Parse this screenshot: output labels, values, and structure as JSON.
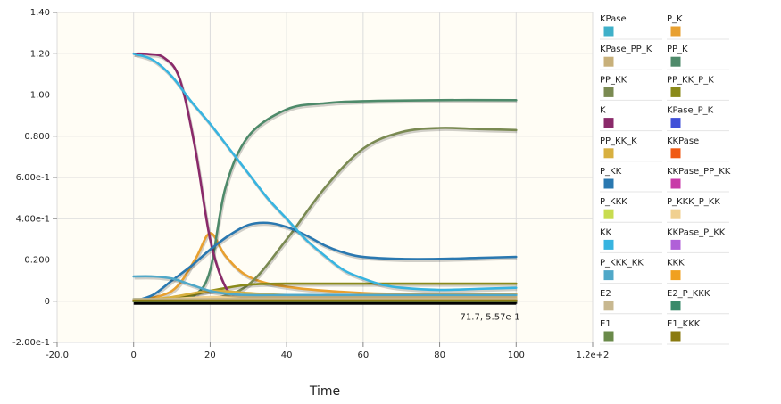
{
  "chart_data": {
    "type": "line",
    "xlabel": "Time",
    "ylabel": "",
    "xlim": [
      -20,
      120
    ],
    "ylim": [
      -0.2,
      1.4
    ],
    "x_ticks": [
      -20,
      0,
      20,
      40,
      60,
      80,
      100,
      120
    ],
    "x_tick_labels": [
      "-20.0",
      "0",
      "20",
      "40",
      "60",
      "80",
      "100",
      "1.2e+2"
    ],
    "y_ticks": [
      -0.2,
      0,
      0.2,
      0.4,
      0.6,
      0.8,
      1.0,
      1.2,
      1.4
    ],
    "y_tick_labels": [
      "-2.00e-1",
      "0",
      "0.200",
      "4.00e-1",
      "6.00e-1",
      "0.800",
      "1.00",
      "1.20",
      "1.40"
    ],
    "grid": true,
    "legend_placement": "right",
    "readout": "71.7, 5.57e-1",
    "series": [
      {
        "name": "KPase",
        "color": "#3fb0c9",
        "x": [
          0,
          20,
          40,
          60,
          80,
          100
        ],
        "values": [
          0.01,
          0.01,
          0.01,
          0.01,
          0.01,
          0.01
        ]
      },
      {
        "name": "P_K",
        "color": "#e8a030",
        "x": [
          0,
          10,
          16,
          20,
          24,
          30,
          40,
          60,
          80,
          100
        ],
        "values": [
          0,
          0.05,
          0.2,
          0.33,
          0.22,
          0.12,
          0.07,
          0.04,
          0.035,
          0.035
        ]
      },
      {
        "name": "KPase_PP_K",
        "color": "#c8b07a",
        "x": [
          0,
          20,
          40,
          60,
          80,
          100
        ],
        "values": [
          0,
          0.01,
          0.02,
          0.02,
          0.02,
          0.02
        ]
      },
      {
        "name": "PP_K",
        "color": "#4e8a6a",
        "x": [
          0,
          10,
          16,
          20,
          24,
          30,
          40,
          50,
          60,
          80,
          100
        ],
        "values": [
          0,
          0.002,
          0.03,
          0.15,
          0.55,
          0.8,
          0.93,
          0.96,
          0.97,
          0.975,
          0.975
        ]
      },
      {
        "name": "PP_KK",
        "color": "#7a8a52",
        "x": [
          0,
          10,
          20,
          30,
          40,
          50,
          60,
          70,
          80,
          90,
          100
        ],
        "values": [
          0,
          0.002,
          0.01,
          0.08,
          0.3,
          0.55,
          0.74,
          0.82,
          0.84,
          0.835,
          0.83
        ]
      },
      {
        "name": "PP_KK_P_K",
        "color": "#8a8a1a",
        "x": [
          0,
          10,
          20,
          30,
          40,
          60,
          80,
          100
        ],
        "values": [
          0,
          0.01,
          0.05,
          0.08,
          0.085,
          0.085,
          0.085,
          0.085
        ]
      },
      {
        "name": "K",
        "color": "#8a2a6a",
        "x": [
          0,
          4,
          8,
          12,
          16,
          20,
          24,
          28,
          32,
          40,
          60,
          100
        ],
        "values": [
          1.2,
          1.198,
          1.18,
          1.08,
          0.75,
          0.3,
          0.07,
          0.02,
          0.005,
          0.002,
          0.001,
          0.001
        ]
      },
      {
        "name": "KPase_P_K",
        "color": "#4050d8",
        "x": [
          0,
          20,
          40,
          60,
          80,
          100
        ],
        "values": [
          0,
          0.003,
          0.004,
          0.004,
          0.004,
          0.004
        ]
      },
      {
        "name": "PP_KK_K",
        "color": "#d8b040",
        "x": [
          0,
          10,
          20,
          30,
          40,
          60,
          80,
          100
        ],
        "values": [
          0,
          0.02,
          0.05,
          0.04,
          0.03,
          0.03,
          0.03,
          0.03
        ]
      },
      {
        "name": "KKPase",
        "color": "#f05a14",
        "x": [
          0,
          20,
          40,
          60,
          80,
          100
        ],
        "values": [
          0.005,
          0.005,
          0.005,
          0.005,
          0.005,
          0.005
        ]
      },
      {
        "name": "P_KK",
        "color": "#2a78b0",
        "x": [
          0,
          5,
          10,
          15,
          20,
          25,
          30,
          35,
          40,
          45,
          50,
          55,
          60,
          70,
          80,
          90,
          100
        ],
        "values": [
          0,
          0.03,
          0.1,
          0.17,
          0.25,
          0.32,
          0.37,
          0.38,
          0.36,
          0.32,
          0.27,
          0.235,
          0.215,
          0.205,
          0.205,
          0.21,
          0.215
        ]
      },
      {
        "name": "KKPase_PP_KK",
        "color": "#c83aa8",
        "x": [
          0,
          20,
          40,
          60,
          80,
          100
        ],
        "values": [
          0,
          0.003,
          0.005,
          0.005,
          0.005,
          0.005
        ]
      },
      {
        "name": "P_KKK",
        "color": "#c8dc50",
        "x": [
          0,
          20,
          40,
          60,
          80,
          100
        ],
        "values": [
          0.002,
          0.002,
          0.002,
          0.002,
          0.002,
          0.002
        ]
      },
      {
        "name": "P_KKK_P_KK",
        "color": "#f0d090",
        "x": [
          0,
          10,
          20,
          40,
          60,
          80,
          100
        ],
        "values": [
          0,
          0.01,
          0.02,
          0.02,
          0.02,
          0.02,
          0.02
        ]
      },
      {
        "name": "KK",
        "color": "#38b4e0",
        "x": [
          0,
          5,
          10,
          15,
          20,
          25,
          30,
          35,
          40,
          45,
          50,
          55,
          60,
          65,
          70,
          80,
          90,
          100
        ],
        "values": [
          1.2,
          1.17,
          1.09,
          0.97,
          0.86,
          0.74,
          0.62,
          0.5,
          0.4,
          0.3,
          0.22,
          0.15,
          0.11,
          0.08,
          0.065,
          0.055,
          0.06,
          0.065
        ]
      },
      {
        "name": "KKPase_P_KK",
        "color": "#b060d8",
        "x": [
          0,
          20,
          40,
          60,
          80,
          100
        ],
        "values": [
          0,
          0.004,
          0.005,
          0.005,
          0.005,
          0.005
        ]
      },
      {
        "name": "P_KKK_KK",
        "color": "#50a8c8",
        "x": [
          0,
          5,
          10,
          15,
          20,
          25,
          30,
          40,
          60,
          80,
          100
        ],
        "values": [
          0.12,
          0.12,
          0.11,
          0.08,
          0.05,
          0.035,
          0.03,
          0.03,
          0.03,
          0.03,
          0.03
        ]
      },
      {
        "name": "KKK",
        "color": "#f0a020",
        "x": [
          0,
          20,
          40,
          60,
          80,
          100
        ],
        "values": [
          0,
          0.001,
          0.001,
          0.001,
          0.001,
          0.001
        ]
      },
      {
        "name": "E2",
        "color": "#c8b890",
        "x": [
          0,
          20,
          40,
          60,
          80,
          100
        ],
        "values": [
          0.01,
          0.01,
          0.01,
          0.01,
          0.01,
          0.01
        ]
      },
      {
        "name": "E2_P_KKK",
        "color": "#3a8a6a",
        "x": [
          0,
          20,
          40,
          60,
          80,
          100
        ],
        "values": [
          0,
          0.002,
          0.002,
          0.002,
          0.002,
          0.002
        ]
      },
      {
        "name": "E1",
        "color": "#6a8a4a",
        "x": [
          0,
          20,
          40,
          60,
          80,
          100
        ],
        "values": [
          0,
          0,
          0,
          0,
          0,
          0
        ]
      },
      {
        "name": "E1_KKK",
        "color": "#8a7a10",
        "x": [
          0,
          20,
          40,
          60,
          80,
          100
        ],
        "values": [
          0.003,
          0.003,
          0.003,
          0.003,
          0.003,
          0.003
        ]
      }
    ]
  }
}
